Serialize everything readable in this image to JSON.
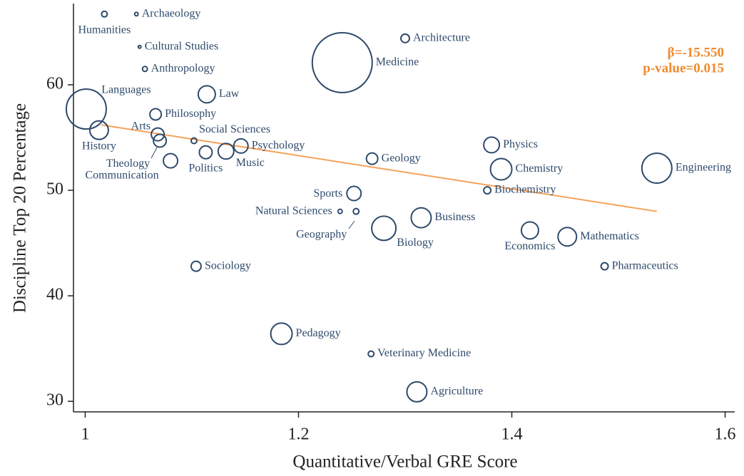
{
  "chart_data": {
    "type": "scatter",
    "x_label": "Quantitative/Verbal GRE Score",
    "y_label": "Discipline Top 20 Percentage",
    "labels": [
      "Humanities",
      "Archaeology",
      "Cultural Studies",
      "Anthropology",
      "Architecture",
      "Medicine",
      "Law",
      "Languages",
      "Philosophy",
      "History",
      "Arts",
      "Theology",
      "Communication",
      "Social Sciences",
      "Politics",
      "Music",
      "Psychology",
      "Geology",
      "Physics",
      "Chemistry",
      "Engineering",
      "Biochemistry",
      "Sports",
      "Natural Sciences",
      "Geography",
      "Biology",
      "Business",
      "Economics",
      "Mathematics",
      "Pharmaceutics",
      "Sociology",
      "Pedagogy",
      "Veterinary Medicine",
      "Agriculture"
    ],
    "x": [
      1.018,
      1.048,
      1.051,
      1.056,
      1.3,
      1.241,
      1.114,
      1.001,
      1.066,
      1.013,
      1.068,
      1.07,
      1.08,
      1.102,
      1.113,
      1.132,
      1.146,
      1.269,
      1.381,
      1.39,
      1.536,
      1.377,
      1.252,
      1.239,
      1.254,
      1.28,
      1.315,
      1.417,
      1.452,
      1.487,
      1.104,
      1.184,
      1.268,
      1.311
    ],
    "values": [
      66.7,
      66.7,
      63.6,
      61.5,
      64.4,
      62.1,
      59.1,
      57.7,
      57.2,
      55.7,
      55.3,
      54.7,
      52.8,
      54.7,
      53.6,
      53.7,
      54.2,
      53.0,
      54.3,
      52.0,
      52.1,
      50.0,
      49.7,
      48.0,
      48.0,
      46.4,
      47.4,
      46.2,
      45.6,
      42.8,
      42.8,
      36.4,
      34.5,
      30.9
    ],
    "sizes": [
      4,
      2.5,
      2,
      3.5,
      6,
      42,
      12,
      28,
      8,
      13,
      9,
      9,
      10,
      4,
      9,
      11,
      10,
      8,
      11,
      15,
      21,
      5,
      10,
      3,
      4,
      17,
      14,
      12,
      13,
      5,
      7,
      15,
      4,
      14
    ],
    "color": "#2e4a6b",
    "fit_line": {
      "x": [
        1.015,
        1.536
      ],
      "y": [
        56.2,
        48.0
      ],
      "color": "#f5a35a"
    },
    "annotations": [
      "β=-15.550",
      "p-value=0.015"
    ],
    "annotation_color": "#f08a2c",
    "xlim": [
      0.989,
      1.609
    ],
    "ylim": [
      29,
      67.7
    ],
    "xticks": [
      1,
      1.2,
      1.4,
      1.6
    ],
    "yticks": [
      30,
      40,
      50,
      60
    ]
  }
}
